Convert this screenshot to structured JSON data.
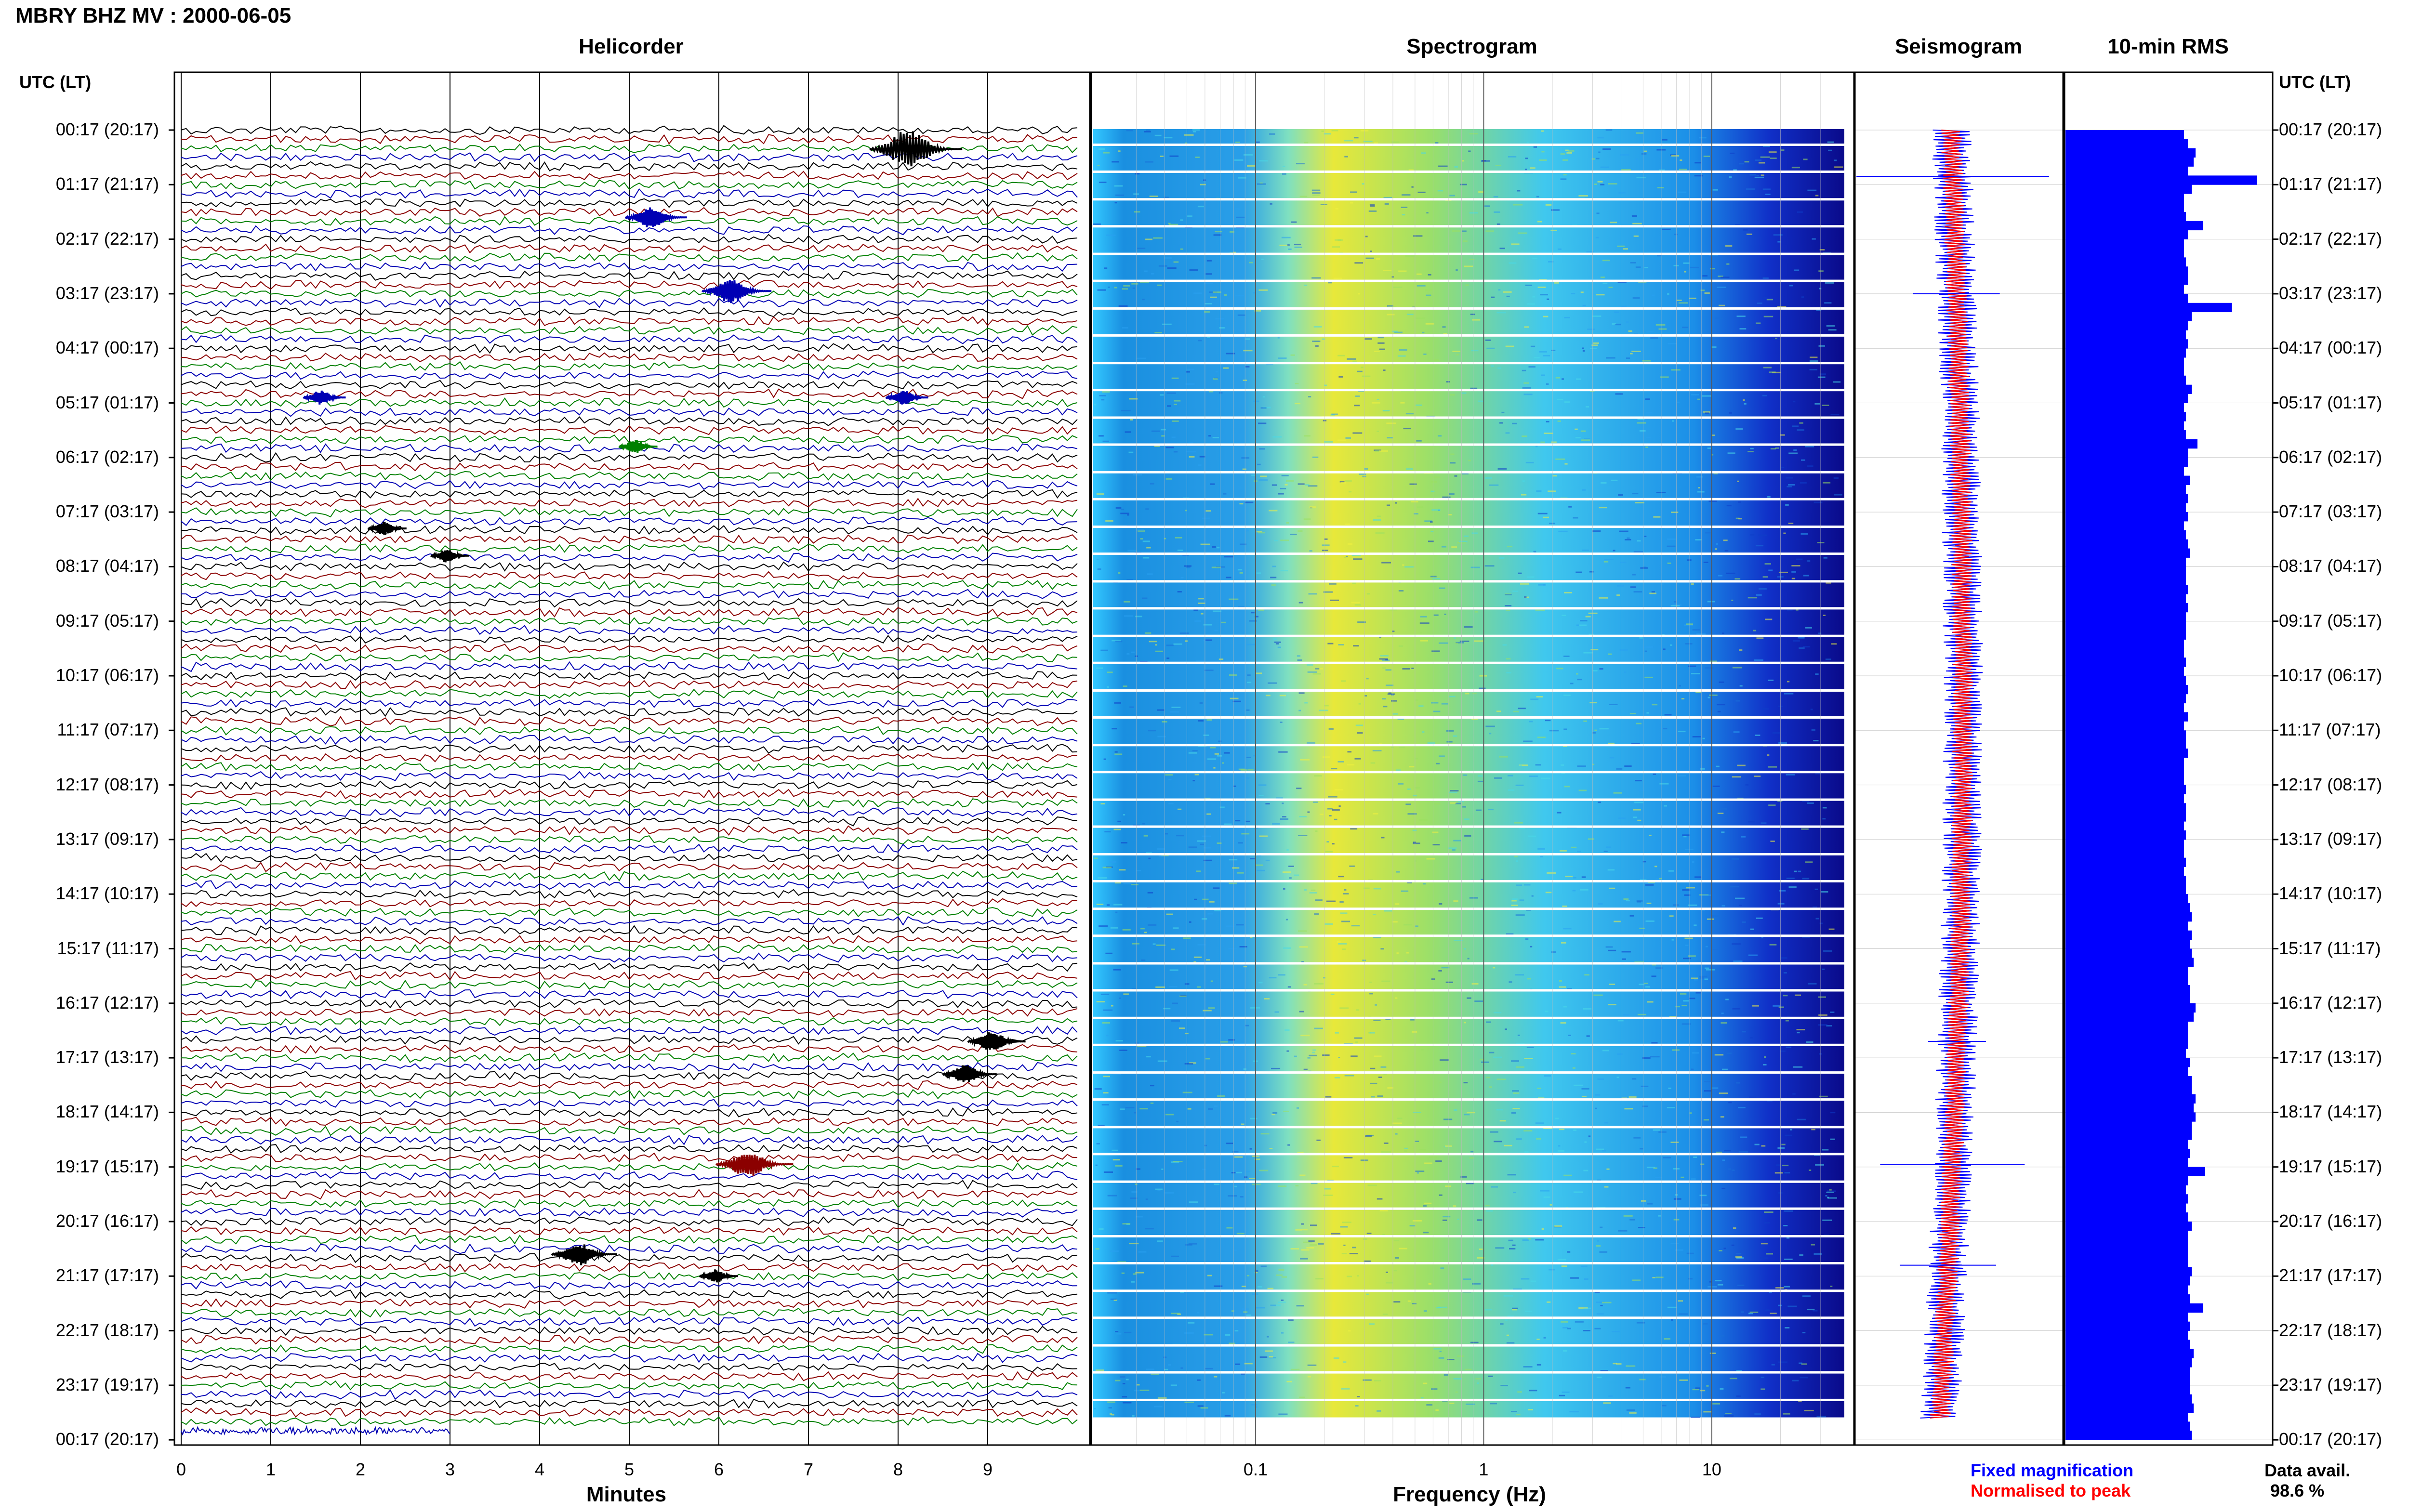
{
  "title": "MBRY BHZ MV : 2000-06-05",
  "panels": {
    "helicorder": "Helicorder",
    "spectrogram": "Spectrogram",
    "seismogram": "Seismogram",
    "rms": "10-min RMS"
  },
  "utc_header": "UTC (LT)",
  "time_labels": [
    "00:17 (20:17)",
    "01:17 (21:17)",
    "02:17 (22:17)",
    "03:17 (23:17)",
    "04:17 (00:17)",
    "05:17 (01:17)",
    "06:17 (02:17)",
    "07:17 (03:17)",
    "08:17 (04:17)",
    "09:17 (05:17)",
    "10:17 (06:17)",
    "11:17 (07:17)",
    "12:17 (08:17)",
    "13:17 (09:17)",
    "14:17 (10:17)",
    "15:17 (11:17)",
    "16:17 (12:17)",
    "17:17 (13:17)",
    "18:17 (14:17)",
    "19:17 (15:17)",
    "20:17 (16:17)",
    "21:17 (17:17)",
    "22:17 (18:17)",
    "23:17 (19:17)",
    "00:17 (20:17)"
  ],
  "xlabels": {
    "helicorder": "Minutes",
    "spectrogram": "Frequency (Hz)"
  },
  "legend": {
    "fixed": "Fixed magnification",
    "normalised": "Normalised to peak"
  },
  "data_avail": {
    "label": "Data avail.",
    "value": "98.6 %"
  },
  "colors": {
    "trace": [
      "#000000",
      "#8b0000",
      "#008000",
      "#0000b4"
    ],
    "fixed": "#0000ff",
    "normalised": "#ff0000",
    "rms": "#0000ff"
  },
  "chart_data": [
    {
      "type": "line",
      "name": "helicorder",
      "x": {
        "label": "Minutes",
        "ticks": [
          0,
          1,
          2,
          3,
          4,
          5,
          6,
          7,
          8,
          9
        ],
        "range": [
          0,
          10
        ]
      },
      "rows_per_hour": 6,
      "row_count": 144,
      "events": [
        {
          "hour": 0.35,
          "minute": 8.2,
          "amp": 3.0,
          "row_color": 0
        },
        {
          "hour": 1.6,
          "minute": 5.3,
          "amp": 1.6,
          "row_color": 3
        },
        {
          "hour": 2.95,
          "minute": 6.2,
          "amp": 1.8,
          "row_color": 3
        },
        {
          "hour": 4.9,
          "minute": 1.6,
          "amp": 1.1,
          "row_color": 3
        },
        {
          "hour": 4.9,
          "minute": 8.1,
          "amp": 1.1,
          "row_color": 3
        },
        {
          "hour": 5.8,
          "minute": 5.1,
          "amp": 1.0,
          "row_color": 2
        },
        {
          "hour": 7.3,
          "minute": 2.3,
          "amp": 1.0,
          "row_color": 0
        },
        {
          "hour": 7.8,
          "minute": 3.0,
          "amp": 1.0,
          "row_color": 0
        },
        {
          "hour": 16.7,
          "minute": 9.1,
          "amp": 1.5,
          "row_color": 0
        },
        {
          "hour": 17.3,
          "minute": 8.8,
          "amp": 1.4,
          "row_color": 0
        },
        {
          "hour": 18.95,
          "minute": 6.4,
          "amp": 2.0,
          "row_color": 1
        },
        {
          "hour": 20.6,
          "minute": 4.5,
          "amp": 1.7,
          "row_color": 0
        },
        {
          "hour": 21.0,
          "minute": 6.0,
          "amp": 1.0,
          "row_color": 0
        }
      ]
    },
    {
      "type": "heatmap",
      "name": "spectrogram",
      "x": {
        "label": "Frequency (Hz)",
        "scale": "log",
        "range": [
          0.02,
          40
        ],
        "tick_labels": [
          "0.1",
          "1",
          "10"
        ]
      },
      "colormap": "jet"
    },
    {
      "type": "line",
      "name": "seismogram",
      "legend": [
        "Fixed magnification",
        "Normalised to peak"
      ]
    },
    {
      "type": "bar",
      "name": "rms",
      "orientation": "horizontal",
      "values": [
        0.62,
        0.64,
        0.68,
        0.67,
        0.64,
        1.0,
        0.66,
        0.62,
        0.62,
        0.63,
        0.72,
        0.64,
        0.62,
        0.62,
        0.63,
        0.64,
        0.64,
        0.62,
        0.64,
        0.87,
        0.66,
        0.64,
        0.63,
        0.64,
        0.63,
        0.62,
        0.62,
        0.63,
        0.66,
        0.64,
        0.62,
        0.63,
        0.62,
        0.63,
        0.69,
        0.64,
        0.64,
        0.62,
        0.65,
        0.63,
        0.64,
        0.63,
        0.64,
        0.62,
        0.63,
        0.64,
        0.65,
        0.63,
        0.63,
        0.63,
        0.64,
        0.63,
        0.64,
        0.63,
        0.63,
        0.63,
        0.62,
        0.62,
        0.63,
        0.62,
        0.63,
        0.64,
        0.63,
        0.62,
        0.64,
        0.62,
        0.63,
        0.63,
        0.64,
        0.62,
        0.62,
        0.62,
        0.63,
        0.62,
        0.63,
        0.63,
        0.62,
        0.63,
        0.62,
        0.62,
        0.63,
        0.62,
        0.63,
        0.63,
        0.64,
        0.65,
        0.66,
        0.64,
        0.66,
        0.65,
        0.66,
        0.67,
        0.64,
        0.64,
        0.65,
        0.65,
        0.68,
        0.67,
        0.64,
        0.64,
        0.64,
        0.63,
        0.65,
        0.64,
        0.66,
        0.66,
        0.68,
        0.67,
        0.68,
        0.66,
        0.66,
        0.64,
        0.65,
        0.64,
        0.73,
        0.64,
        0.63,
        0.64,
        0.63,
        0.64,
        0.66,
        0.64,
        0.64,
        0.64,
        0.64,
        0.66,
        0.65,
        0.64,
        0.65,
        0.72,
        0.64,
        0.65,
        0.64,
        0.65,
        0.67,
        0.66,
        0.65,
        0.65,
        0.65,
        0.66,
        0.67,
        0.64,
        0.65,
        0.66
      ]
    }
  ]
}
